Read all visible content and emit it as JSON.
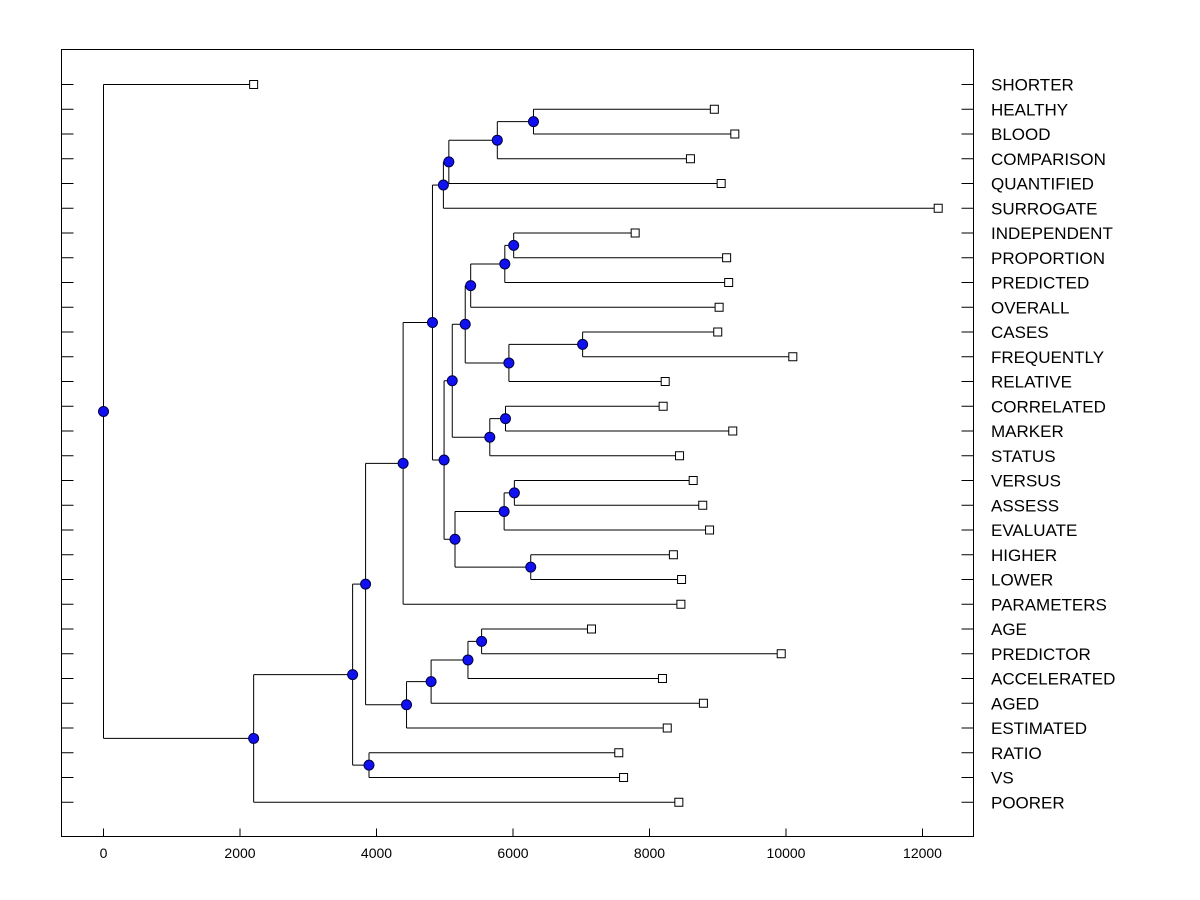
{
  "chart_data": {
    "type": "dendrogram",
    "orientation": "horizontal",
    "title": "",
    "xlabel": "",
    "ylabel": "",
    "xlim": [
      -600,
      12800
    ],
    "xticks": [
      0,
      2000,
      4000,
      6000,
      8000,
      10000,
      12000
    ],
    "xtick_labels": [
      "0",
      "2000",
      "4000",
      "6000",
      "8000",
      "10000",
      "12000"
    ],
    "grid": false,
    "colors": {
      "node_fill": "#1010f0",
      "node_stroke": "#000044",
      "line": "#000000",
      "leaf_fill": "#ffffff"
    },
    "leaves": [
      {
        "id": "SHORTER",
        "label": "SHORTER",
        "x": 2200
      },
      {
        "id": "HEALTHY",
        "label": "HEALTHY",
        "x": 8950
      },
      {
        "id": "BLOOD",
        "label": "BLOOD",
        "x": 9250
      },
      {
        "id": "COMPARISON",
        "label": "COMPARISON",
        "x": 8600
      },
      {
        "id": "QUANTIFIED",
        "label": "QUANTIFIED",
        "x": 9050
      },
      {
        "id": "SURROGATE",
        "label": "SURROGATE",
        "x": 12230
      },
      {
        "id": "INDEPENDENT",
        "label": "INDEPENDENT",
        "x": 7790
      },
      {
        "id": "PROPORTION",
        "label": "PROPORTION",
        "x": 9130
      },
      {
        "id": "PREDICTED",
        "label": "PREDICTED",
        "x": 9160
      },
      {
        "id": "OVERALL",
        "label": "OVERALL",
        "x": 9020
      },
      {
        "id": "CASES",
        "label": "CASES",
        "x": 9000
      },
      {
        "id": "FREQUENTLY",
        "label": "FREQUENTLY",
        "x": 10100
      },
      {
        "id": "RELATIVE",
        "label": "RELATIVE",
        "x": 8230
      },
      {
        "id": "CORRELATED",
        "label": "CORRELATED",
        "x": 8200
      },
      {
        "id": "MARKER",
        "label": "MARKER",
        "x": 9220
      },
      {
        "id": "STATUS",
        "label": "STATUS",
        "x": 8440
      },
      {
        "id": "VERSUS",
        "label": "VERSUS",
        "x": 8640
      },
      {
        "id": "ASSESS",
        "label": "ASSESS",
        "x": 8780
      },
      {
        "id": "EVALUATE",
        "label": "EVALUATE",
        "x": 8880
      },
      {
        "id": "HIGHER",
        "label": "HIGHER",
        "x": 8350
      },
      {
        "id": "LOWER",
        "label": "LOWER",
        "x": 8470
      },
      {
        "id": "PARAMETERS",
        "label": "PARAMETERS",
        "x": 8460
      },
      {
        "id": "AGE",
        "label": "AGE",
        "x": 7150
      },
      {
        "id": "PREDICTOR",
        "label": "PREDICTOR",
        "x": 9930
      },
      {
        "id": "ACCELERATED",
        "label": "ACCELERATED",
        "x": 8190
      },
      {
        "id": "AGED",
        "label": "AGED",
        "x": 8790
      },
      {
        "id": "ESTIMATED",
        "label": "ESTIMATED",
        "x": 8260
      },
      {
        "id": "RATIO",
        "label": "RATIO",
        "x": 7550
      },
      {
        "id": "VS",
        "label": "VS",
        "x": 7620
      },
      {
        "id": "POORER",
        "label": "POORER",
        "x": 8430
      }
    ],
    "merges": [
      {
        "id": "n_healthy_blood",
        "x": 6300,
        "children": [
          "HEALTHY",
          "BLOOD"
        ]
      },
      {
        "id": "n_hb_comparison",
        "x": 5770,
        "children": [
          "n_healthy_blood",
          "COMPARISON"
        ]
      },
      {
        "id": "n_hbc_quantified",
        "x": 5060,
        "children": [
          "n_hb_comparison",
          "QUANTIFIED"
        ]
      },
      {
        "id": "n_top_surrogate",
        "x": 4980,
        "children": [
          "n_hbc_quantified",
          "SURROGATE"
        ]
      },
      {
        "id": "n_indep_prop",
        "x": 6010,
        "children": [
          "INDEPENDENT",
          "PROPORTION"
        ]
      },
      {
        "id": "n_ip_predicted",
        "x": 5880,
        "children": [
          "n_indep_prop",
          "PREDICTED"
        ]
      },
      {
        "id": "n_ipp_overall",
        "x": 5380,
        "children": [
          "n_ip_predicted",
          "OVERALL"
        ]
      },
      {
        "id": "n_cases_freq",
        "x": 7020,
        "children": [
          "CASES",
          "FREQUENTLY"
        ]
      },
      {
        "id": "n_cf_relative",
        "x": 5940,
        "children": [
          "n_cases_freq",
          "RELATIVE"
        ]
      },
      {
        "id": "n_mid_a",
        "x": 5300,
        "children": [
          "n_ipp_overall",
          "n_cf_relative"
        ]
      },
      {
        "id": "n_corr_marker",
        "x": 5890,
        "children": [
          "CORRELATED",
          "MARKER"
        ]
      },
      {
        "id": "n_cm_status",
        "x": 5660,
        "children": [
          "n_corr_marker",
          "STATUS"
        ]
      },
      {
        "id": "n_mid_b",
        "x": 5110,
        "children": [
          "n_mid_a",
          "n_cm_status"
        ]
      },
      {
        "id": "n_versus_assess",
        "x": 6020,
        "children": [
          "VERSUS",
          "ASSESS"
        ]
      },
      {
        "id": "n_va_evaluate",
        "x": 5870,
        "children": [
          "n_versus_assess",
          "EVALUATE"
        ]
      },
      {
        "id": "n_higher_lower",
        "x": 6260,
        "children": [
          "HIGHER",
          "LOWER"
        ]
      },
      {
        "id": "n_vae_hl",
        "x": 5150,
        "children": [
          "n_va_evaluate",
          "n_higher_lower"
        ]
      },
      {
        "id": "n_mid_c",
        "x": 4990,
        "children": [
          "n_mid_b",
          "n_vae_hl"
        ]
      },
      {
        "id": "n_upper",
        "x": 4820,
        "children": [
          "n_top_surrogate",
          "n_mid_c"
        ]
      },
      {
        "id": "n_upper_params",
        "x": 4390,
        "children": [
          "n_upper",
          "PARAMETERS"
        ]
      },
      {
        "id": "n_age_predictor",
        "x": 5540,
        "children": [
          "AGE",
          "PREDICTOR"
        ]
      },
      {
        "id": "n_ap_accel",
        "x": 5340,
        "children": [
          "n_age_predictor",
          "ACCELERATED"
        ]
      },
      {
        "id": "n_apa_aged",
        "x": 4800,
        "children": [
          "n_ap_accel",
          "AGED"
        ]
      },
      {
        "id": "n_apaa_estimated",
        "x": 4440,
        "children": [
          "n_apa_aged",
          "ESTIMATED"
        ]
      },
      {
        "id": "n_upper_lower",
        "x": 3840,
        "children": [
          "n_upper_params",
          "n_apaa_estimated"
        ]
      },
      {
        "id": "n_ratio_vs",
        "x": 3890,
        "children": [
          "RATIO",
          "VS"
        ]
      },
      {
        "id": "n_ul_rv",
        "x": 3650,
        "children": [
          "n_upper_lower",
          "n_ratio_vs"
        ]
      },
      {
        "id": "n_ulrv_poorer",
        "x": 2200,
        "children": [
          "n_ul_rv",
          "POORER"
        ]
      },
      {
        "id": "n_root",
        "x": 0,
        "children": [
          "SHORTER",
          "n_ulrv_poorer"
        ]
      }
    ]
  }
}
